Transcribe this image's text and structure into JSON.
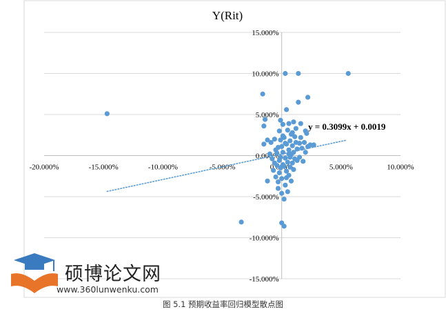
{
  "chart_data": {
    "type": "scatter",
    "title": "Y(Rit)",
    "xlim": [
      -0.2,
      0.1
    ],
    "ylim": [
      -0.15,
      0.15
    ],
    "x_ticks": [
      "-20.000%",
      "-15.000%",
      "-10.000%",
      "-5.000%",
      "0.000%",
      "5.000%",
      "10.000%"
    ],
    "x_tick_values": [
      -0.2,
      -0.15,
      -0.1,
      -0.05,
      0.0,
      0.05,
      0.1
    ],
    "y_ticks": [
      "15.000%",
      "10.000%",
      "5.000%",
      "0.000%",
      "-5.000%",
      "-10.000%",
      "-15.000%"
    ],
    "y_tick_values": [
      0.15,
      0.1,
      0.05,
      0.0,
      -0.05,
      -0.1,
      -0.15
    ],
    "grid": "horizontal",
    "point_color": "#5b9bd5",
    "trendline": {
      "label": "y = 0.3099x + 0.0019",
      "slope": 0.3099,
      "intercept": 0.0019,
      "x_range": [
        -0.147,
        0.055
      ],
      "color": "#5b9bd5",
      "style": "dotted"
    },
    "points": [
      [
        -0.147,
        0.051
      ],
      [
        -0.034,
        -0.081
      ],
      [
        -0.016,
        0.075
      ],
      [
        -0.014,
        0.044
      ],
      [
        -0.015,
        0.036
      ],
      [
        -0.015,
        0.014
      ],
      [
        -0.012,
        0.019
      ],
      [
        -0.012,
        -0.031
      ],
      [
        -0.009,
        0.016
      ],
      [
        -0.01,
        0.002
      ],
      [
        -0.008,
        -0.004
      ],
      [
        -0.007,
        -0.018
      ],
      [
        -0.006,
        -0.009
      ],
      [
        -0.006,
        0.02
      ],
      [
        -0.005,
        0.007
      ],
      [
        -0.005,
        -0.026
      ],
      [
        -0.004,
        -0.012
      ],
      [
        -0.004,
        0.003
      ],
      [
        -0.003,
        -0.04
      ],
      [
        -0.003,
        -0.032
      ],
      [
        -0.003,
        0.01
      ],
      [
        -0.002,
        -0.006
      ],
      [
        -0.002,
        -0.021
      ],
      [
        -0.002,
        0.03
      ],
      [
        -0.001,
        0.043
      ],
      [
        -0.001,
        -0.002
      ],
      [
        -0.001,
        -0.015
      ],
      [
        0.0,
        0.011
      ],
      [
        0.0,
        -0.028
      ],
      [
        0.0,
        -0.046
      ],
      [
        0.0,
        -0.082
      ],
      [
        0.001,
        0.038
      ],
      [
        0.001,
        0.004
      ],
      [
        0.001,
        -0.011
      ],
      [
        0.002,
        -0.086
      ],
      [
        0.002,
        -0.053
      ],
      [
        0.002,
        0.022
      ],
      [
        0.003,
        0.1
      ],
      [
        0.003,
        -0.003
      ],
      [
        0.003,
        -0.036
      ],
      [
        0.004,
        0.056
      ],
      [
        0.004,
        0.014
      ],
      [
        0.004,
        -0.019
      ],
      [
        0.005,
        0.031
      ],
      [
        0.005,
        -0.008
      ],
      [
        0.005,
        -0.044
      ],
      [
        0.006,
        0.039
      ],
      [
        0.006,
        0.007
      ],
      [
        0.006,
        -0.024
      ],
      [
        0.007,
        0.018
      ],
      [
        0.007,
        -0.002
      ],
      [
        0.007,
        -0.014
      ],
      [
        0.008,
        0.026
      ],
      [
        0.008,
        0.001
      ],
      [
        0.008,
        -0.031
      ],
      [
        0.009,
        0.012
      ],
      [
        0.009,
        -0.009
      ],
      [
        0.01,
        0.041
      ],
      [
        0.01,
        0.004
      ],
      [
        0.01,
        -0.017
      ],
      [
        0.011,
        0.023
      ],
      [
        0.011,
        -0.004
      ],
      [
        0.012,
        0.016
      ],
      [
        0.012,
        0.033
      ],
      [
        0.013,
        0.008
      ],
      [
        0.013,
        -0.006
      ],
      [
        0.014,
        0.065
      ],
      [
        0.014,
        0.1
      ],
      [
        0.015,
        0.015
      ],
      [
        0.015,
        -0.002
      ],
      [
        0.016,
        0.039
      ],
      [
        0.016,
        0.022
      ],
      [
        0.017,
        0.009
      ],
      [
        0.018,
        -0.007
      ],
      [
        0.019,
        0.016
      ],
      [
        0.02,
        0.03
      ],
      [
        0.02,
        0.004
      ],
      [
        0.021,
        0.027
      ],
      [
        0.022,
        0.071
      ],
      [
        0.022,
        0.011
      ],
      [
        0.024,
        0.013
      ],
      [
        0.027,
        0.013
      ],
      [
        0.056,
        0.1
      ],
      [
        -0.001,
        0.019
      ],
      [
        0.003,
        0.015
      ],
      [
        0.002,
        -0.013
      ],
      [
        0.009,
        0.028
      ],
      [
        0.004,
        -0.027
      ],
      [
        0.001,
        0.024
      ],
      [
        0.006,
        0.002
      ]
    ],
    "caption": "图 5.1  预期收益率回归模型散点图"
  },
  "watermark": {
    "name": "硕博论文网",
    "url": "www.360lunwenku.com",
    "colors": {
      "cap": "#3a7bbf",
      "book": "#e8742a"
    }
  }
}
